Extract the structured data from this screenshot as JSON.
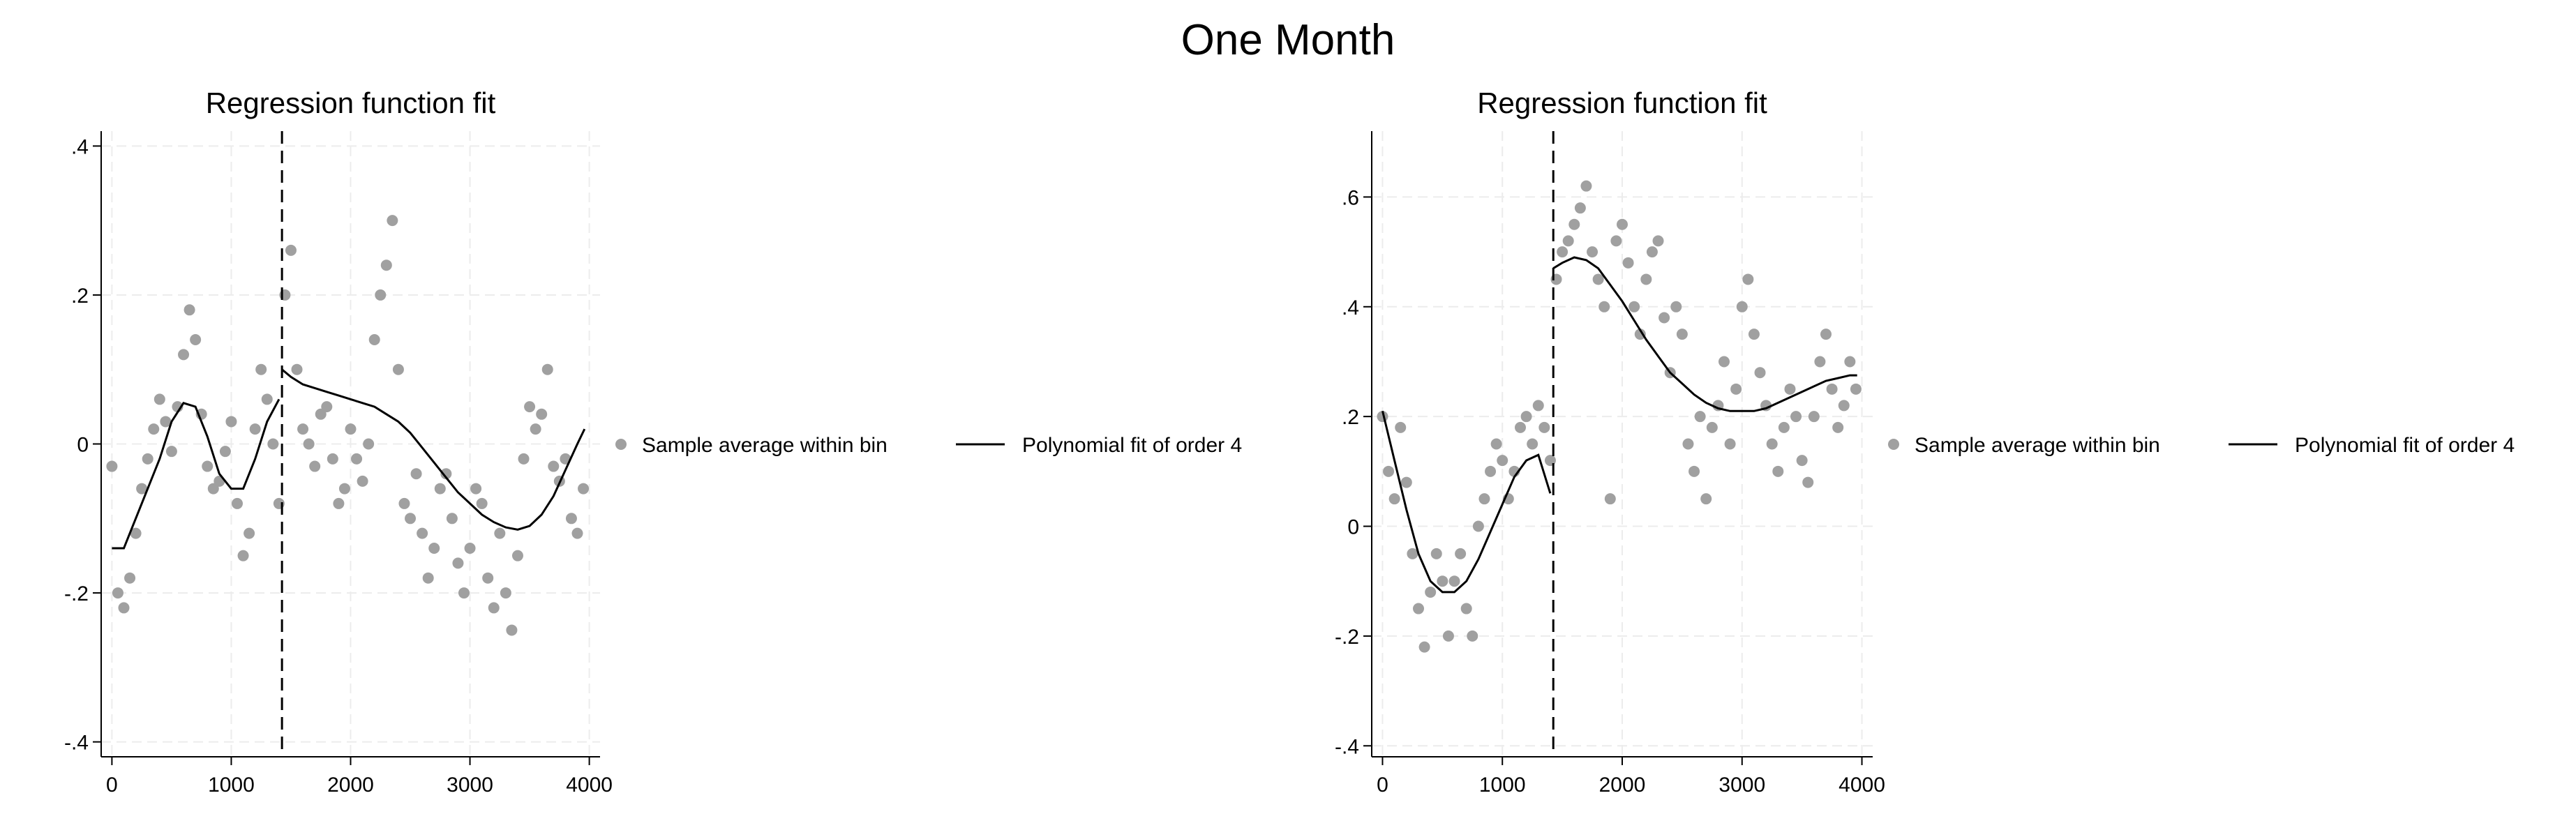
{
  "figure_title": "One Month",
  "chart_data": [
    {
      "type": "scatter",
      "title": "Regression function fit",
      "xlabel": "",
      "ylabel": "",
      "xlim": [
        -90,
        4090
      ],
      "ylim": [
        -0.42,
        0.42
      ],
      "xticks": [
        0,
        1000,
        2000,
        3000,
        4000
      ],
      "xtick_labels": [
        "0",
        "1000",
        "2000",
        "3000",
        "4000"
      ],
      "yticks": [
        -0.4,
        -0.2,
        0,
        0.2,
        0.4
      ],
      "ytick_labels": [
        "-.4",
        "-.2",
        "0",
        ".2",
        ".4"
      ],
      "grid": true,
      "cutoff_x": 1425,
      "legend": {
        "position": "right",
        "entries": [
          {
            "label": "Sample average within bin",
            "kind": "marker",
            "color": "#a0a0a0"
          },
          {
            "label": "Polynomial fit of order 4",
            "kind": "line",
            "color": "#000000"
          }
        ]
      },
      "series": [
        {
          "name": "Sample average within bin",
          "color": "#a0a0a0",
          "x": [
            0,
            50,
            100,
            150,
            200,
            250,
            300,
            350,
            400,
            450,
            500,
            550,
            600,
            650,
            700,
            750,
            800,
            850,
            900,
            950,
            1000,
            1050,
            1100,
            1150,
            1200,
            1250,
            1300,
            1350,
            1400,
            1450,
            1500,
            1550,
            1600,
            1650,
            1700,
            1750,
            1800,
            1850,
            1900,
            1950,
            2000,
            2050,
            2100,
            2150,
            2200,
            2250,
            2300,
            2350,
            2400,
            2450,
            2500,
            2550,
            2600,
            2650,
            2700,
            2750,
            2800,
            2850,
            2900,
            2950,
            3000,
            3050,
            3100,
            3150,
            3200,
            3250,
            3300,
            3350,
            3400,
            3450,
            3500,
            3550,
            3600,
            3650,
            3700,
            3750,
            3800,
            3850,
            3900,
            3950
          ],
          "y": [
            -0.03,
            -0.2,
            -0.22,
            -0.18,
            -0.12,
            -0.06,
            -0.02,
            0.02,
            0.06,
            0.03,
            -0.01,
            0.05,
            0.12,
            0.18,
            0.14,
            0.04,
            -0.03,
            -0.06,
            -0.05,
            -0.01,
            0.03,
            -0.08,
            -0.15,
            -0.12,
            0.02,
            0.1,
            0.06,
            0.0,
            -0.08,
            0.2,
            0.26,
            0.1,
            0.02,
            0.0,
            -0.03,
            0.04,
            0.05,
            -0.02,
            -0.08,
            -0.06,
            0.02,
            -0.02,
            -0.05,
            0.0,
            0.14,
            0.2,
            0.24,
            0.3,
            0.1,
            -0.08,
            -0.1,
            -0.04,
            -0.12,
            -0.18,
            -0.14,
            -0.06,
            -0.04,
            -0.1,
            -0.16,
            -0.2,
            -0.14,
            -0.06,
            -0.08,
            -0.18,
            -0.22,
            -0.12,
            -0.2,
            -0.25,
            -0.15,
            -0.02,
            0.05,
            0.02,
            0.04,
            0.1,
            -0.03,
            -0.05,
            -0.02,
            -0.1,
            -0.12,
            -0.06
          ]
        },
        {
          "name": "Polynomial fit of order 4",
          "color": "#000000",
          "segments": [
            {
              "x": [
                0,
                100,
                200,
                300,
                400,
                500,
                600,
                700,
                800,
                900,
                1000,
                1100,
                1200,
                1300,
                1400
              ],
              "y": [
                -0.14,
                -0.14,
                -0.1,
                -0.06,
                -0.02,
                0.03,
                0.055,
                0.05,
                0.01,
                -0.04,
                -0.06,
                -0.06,
                -0.02,
                0.03,
                0.06
              ]
            },
            {
              "x": [
                1425,
                1500,
                1600,
                1700,
                1800,
                1900,
                2000,
                2100,
                2200,
                2300,
                2400,
                2500,
                2600,
                2700,
                2800,
                2900,
                3000,
                3100,
                3200,
                3300,
                3400,
                3500,
                3600,
                3700,
                3800,
                3900,
                3960
              ],
              "y": [
                0.1,
                0.09,
                0.08,
                0.075,
                0.07,
                0.065,
                0.06,
                0.055,
                0.05,
                0.04,
                0.03,
                0.015,
                -0.005,
                -0.025,
                -0.045,
                -0.065,
                -0.08,
                -0.095,
                -0.105,
                -0.112,
                -0.115,
                -0.11,
                -0.095,
                -0.07,
                -0.035,
                0.0,
                0.02
              ]
            }
          ]
        }
      ]
    },
    {
      "type": "scatter",
      "title": "Regression function fit",
      "xlabel": "",
      "ylabel": "",
      "xlim": [
        -90,
        4090
      ],
      "ylim": [
        -0.42,
        0.72
      ],
      "xticks": [
        0,
        1000,
        2000,
        3000,
        4000
      ],
      "xtick_labels": [
        "0",
        "1000",
        "2000",
        "3000",
        "4000"
      ],
      "yticks": [
        -0.4,
        -0.2,
        0,
        0.2,
        0.4,
        0.6
      ],
      "ytick_labels": [
        "-.4",
        "-.2",
        "0",
        ".2",
        ".4",
        ".6"
      ],
      "grid": true,
      "cutoff_x": 1425,
      "legend": {
        "position": "right",
        "entries": [
          {
            "label": "Sample average within bin",
            "kind": "marker",
            "color": "#a0a0a0"
          },
          {
            "label": "Polynomial fit of order 4",
            "kind": "line",
            "color": "#000000"
          }
        ]
      },
      "series": [
        {
          "name": "Sample average within bin",
          "color": "#a0a0a0",
          "x": [
            0,
            50,
            100,
            150,
            200,
            250,
            300,
            350,
            400,
            450,
            500,
            550,
            600,
            650,
            700,
            750,
            800,
            850,
            900,
            950,
            1000,
            1050,
            1100,
            1150,
            1200,
            1250,
            1300,
            1350,
            1400,
            1450,
            1500,
            1550,
            1600,
            1650,
            1700,
            1750,
            1800,
            1850,
            1900,
            1950,
            2000,
            2050,
            2100,
            2150,
            2200,
            2250,
            2300,
            2350,
            2400,
            2450,
            2500,
            2550,
            2600,
            2650,
            2700,
            2750,
            2800,
            2850,
            2900,
            2950,
            3000,
            3050,
            3100,
            3150,
            3200,
            3250,
            3300,
            3350,
            3400,
            3450,
            3500,
            3550,
            3600,
            3650,
            3700,
            3750,
            3800,
            3850,
            3900,
            3950
          ],
          "y": [
            0.2,
            0.1,
            0.05,
            0.18,
            0.08,
            -0.05,
            -0.15,
            -0.22,
            -0.12,
            -0.05,
            -0.1,
            -0.2,
            -0.1,
            -0.05,
            -0.15,
            -0.2,
            0.0,
            0.05,
            0.1,
            0.15,
            0.12,
            0.05,
            0.1,
            0.18,
            0.2,
            0.15,
            0.22,
            0.18,
            0.12,
            0.45,
            0.5,
            0.52,
            0.55,
            0.58,
            0.62,
            0.5,
            0.45,
            0.4,
            0.05,
            0.52,
            0.55,
            0.48,
            0.4,
            0.35,
            0.45,
            0.5,
            0.52,
            0.38,
            0.28,
            0.4,
            0.35,
            0.15,
            0.1,
            0.2,
            0.05,
            0.18,
            0.22,
            0.3,
            0.15,
            0.25,
            0.4,
            0.45,
            0.35,
            0.28,
            0.22,
            0.15,
            0.1,
            0.18,
            0.25,
            0.2,
            0.12,
            0.08,
            0.2,
            0.3,
            0.35,
            0.25,
            0.18,
            0.22,
            0.3,
            0.25
          ]
        },
        {
          "name": "Polynomial fit of order 4",
          "color": "#000000",
          "segments": [
            {
              "x": [
                0,
                100,
                200,
                300,
                400,
                500,
                600,
                700,
                800,
                900,
                1000,
                1100,
                1200,
                1300,
                1400
              ],
              "y": [
                0.21,
                0.12,
                0.03,
                -0.05,
                -0.1,
                -0.12,
                -0.12,
                -0.1,
                -0.06,
                -0.01,
                0.04,
                0.09,
                0.12,
                0.13,
                0.06
              ]
            },
            {
              "x": [
                1425,
                1500,
                1600,
                1700,
                1800,
                1900,
                2000,
                2100,
                2200,
                2300,
                2400,
                2500,
                2600,
                2700,
                2800,
                2900,
                3000,
                3100,
                3200,
                3300,
                3400,
                3500,
                3600,
                3700,
                3800,
                3900,
                3960
              ],
              "y": [
                0.47,
                0.48,
                0.49,
                0.485,
                0.47,
                0.44,
                0.41,
                0.375,
                0.34,
                0.31,
                0.28,
                0.26,
                0.24,
                0.225,
                0.215,
                0.21,
                0.21,
                0.21,
                0.215,
                0.225,
                0.235,
                0.245,
                0.255,
                0.265,
                0.27,
                0.275,
                0.275
              ]
            }
          ]
        }
      ]
    }
  ]
}
